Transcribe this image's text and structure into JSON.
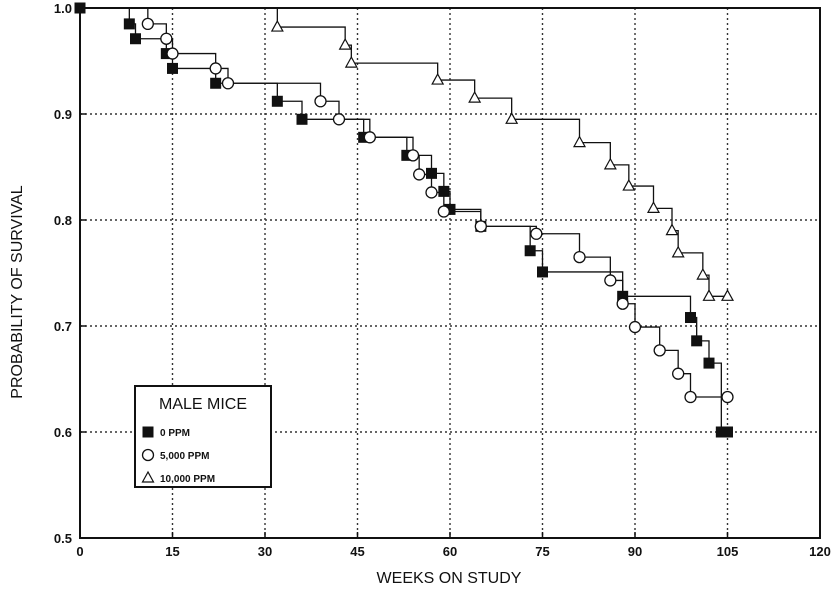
{
  "chart_data": {
    "type": "line",
    "title": "",
    "xlabel": "WEEKS ON STUDY",
    "ylabel": "PROBABILITY OF SURVIVAL",
    "xlim": [
      0,
      120
    ],
    "ylim": [
      0.5,
      1.0
    ],
    "xticks": [
      0,
      15,
      30,
      45,
      60,
      75,
      90,
      105,
      120
    ],
    "yticks": [
      0.5,
      0.6,
      0.7,
      0.8,
      0.9,
      1.0
    ],
    "xtick_labels": [
      "0",
      "15",
      "30",
      "45",
      "60",
      "75",
      "90",
      "105",
      "120"
    ],
    "ytick_labels": [
      "0.5",
      "0.6",
      "0.7",
      "0.8",
      "0.9",
      "1.0"
    ],
    "grid": true,
    "step": true,
    "legend": {
      "title": "MALE MICE",
      "position": "bottom-left"
    },
    "series": [
      {
        "name": "0 PPM",
        "marker": "filled-square",
        "x": [
          0,
          8,
          9,
          14,
          15,
          22,
          32,
          36,
          46,
          53,
          57,
          59,
          60,
          65,
          73,
          75,
          88,
          99,
          100,
          102,
          104,
          105
        ],
        "y": [
          1.0,
          0.985,
          0.971,
          0.957,
          0.943,
          0.929,
          0.912,
          0.895,
          0.878,
          0.861,
          0.844,
          0.827,
          0.81,
          0.794,
          0.771,
          0.751,
          0.728,
          0.708,
          0.686,
          0.665,
          0.6,
          0.6
        ]
      },
      {
        "name": "5,000 PPM",
        "marker": "open-circle",
        "x": [
          11,
          14,
          15,
          22,
          24,
          39,
          42,
          47,
          54,
          55,
          57,
          59,
          65,
          74,
          81,
          86,
          88,
          90,
          94,
          97,
          99,
          105
        ],
        "y": [
          0.985,
          0.971,
          0.957,
          0.943,
          0.929,
          0.912,
          0.895,
          0.878,
          0.861,
          0.843,
          0.826,
          0.808,
          0.794,
          0.787,
          0.765,
          0.743,
          0.721,
          0.699,
          0.677,
          0.655,
          0.633,
          0.633
        ]
      },
      {
        "name": "10,000 PPM",
        "marker": "open-triangle",
        "x": [
          32,
          43,
          44,
          58,
          64,
          70,
          81,
          86,
          89,
          93,
          96,
          97,
          101,
          102,
          105
        ],
        "y": [
          0.982,
          0.965,
          0.948,
          0.932,
          0.915,
          0.895,
          0.873,
          0.852,
          0.832,
          0.811,
          0.79,
          0.769,
          0.748,
          0.728,
          0.728
        ]
      }
    ]
  }
}
